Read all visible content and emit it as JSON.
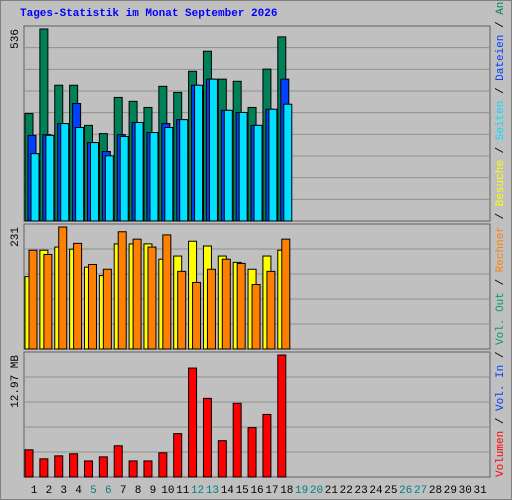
{
  "chart_data": [
    {
      "type": "bar",
      "title": "Tages-Statistik im Monat September 2026",
      "categories": [
        "1",
        "2",
        "3",
        "4",
        "5",
        "6",
        "7",
        "8",
        "9",
        "10",
        "11",
        "12",
        "13",
        "14",
        "15",
        "16",
        "17",
        "18",
        "19",
        "20",
        "21",
        "22",
        "23",
        "24",
        "25",
        "26",
        "27",
        "28",
        "29",
        "30",
        "31"
      ],
      "category_colors": [
        "#000000",
        "#000000",
        "#000000",
        "#000000",
        "#008080",
        "#008080",
        "#000000",
        "#000000",
        "#000000",
        "#000000",
        "#000000",
        "#008080",
        "#008080",
        "#000000",
        "#000000",
        "#000000",
        "#000000",
        "#000000",
        "#008080",
        "#008080",
        "#000000",
        "#000000",
        "#000000",
        "#000000",
        "#000000",
        "#008080",
        "#008080",
        "#000000",
        "#000000",
        "#000000",
        "#000000"
      ],
      "legend_separator": " / ",
      "ylim": [
        0,
        536
      ],
      "yticks": [
        536
      ],
      "series": [
        {
          "name": "Anfragen",
          "color": "#008058",
          "values": [
            300,
            536,
            379,
            379,
            267,
            244,
            345,
            334,
            317,
            376,
            359,
            418,
            474,
            396,
            390,
            317,
            424,
            514,
            null,
            null,
            null,
            null,
            null,
            null,
            null,
            null,
            null,
            null,
            null,
            null,
            null
          ]
        },
        {
          "name": "Dateien",
          "color": "#0040ff",
          "values": [
            239,
            241,
            272,
            328,
            219,
            194,
            241,
            275,
            247,
            272,
            283,
            379,
            396,
            309,
            303,
            267,
            312,
            396,
            null,
            null,
            null,
            null,
            null,
            null,
            null,
            null,
            null,
            null,
            null,
            null,
            null
          ]
        },
        {
          "name": "Seiten",
          "color": "#00e0ff",
          "values": [
            188,
            239,
            272,
            261,
            219,
            182,
            236,
            275,
            247,
            261,
            283,
            379,
            396,
            309,
            303,
            267,
            312,
            326,
            null,
            null,
            null,
            null,
            null,
            null,
            null,
            null,
            null,
            null,
            null,
            null,
            null
          ]
        }
      ]
    },
    {
      "type": "bar",
      "ylim": [
        0,
        231
      ],
      "yticks": [
        231
      ],
      "series": [
        {
          "name": "Besuche",
          "color": "#ffff00",
          "values": [
            137,
            187,
            193,
            189,
            155,
            139,
            199,
            199,
            199,
            170,
            176,
            204,
            195,
            176,
            164,
            151,
            176,
            187,
            null,
            null,
            null,
            null,
            null,
            null,
            null,
            null,
            null,
            null,
            null,
            null,
            null
          ]
        },
        {
          "name": "Rechner",
          "color": "#ff8000",
          "values": [
            187,
            179,
            231,
            200,
            160,
            151,
            222,
            208,
            193,
            216,
            147,
            126,
            151,
            170,
            162,
            122,
            147,
            208,
            null,
            null,
            null,
            null,
            null,
            null,
            null,
            null,
            null,
            null,
            null,
            null,
            null
          ]
        }
      ]
    },
    {
      "type": "bar",
      "ylim": [
        0,
        12.97
      ],
      "yticks": [
        {
          "value": 12.97,
          "label": "12.97 MB"
        }
      ],
      "series": [
        {
          "name": "Vol. Out",
          "color": "#00a060",
          "values": [
            null,
            null,
            null,
            null,
            null,
            null,
            null,
            null,
            null,
            null,
            null,
            null,
            null,
            null,
            null,
            null,
            null,
            null,
            null,
            null,
            null,
            null,
            null,
            null,
            null,
            null,
            null,
            null,
            null,
            null,
            null
          ]
        },
        {
          "name": "Vol. In",
          "color": "#0040ff",
          "values": [
            null,
            null,
            null,
            null,
            null,
            null,
            null,
            null,
            null,
            null,
            null,
            null,
            null,
            null,
            null,
            null,
            null,
            null,
            null,
            null,
            null,
            null,
            null,
            null,
            null,
            null,
            null,
            null,
            null,
            null,
            null
          ]
        },
        {
          "name": "Volumen",
          "color": "#ff0000",
          "values": [
            2.89,
            1.93,
            2.25,
            2.47,
            1.71,
            2.14,
            3.32,
            1.71,
            1.71,
            2.57,
            4.61,
            11.58,
            8.36,
            3.86,
            7.83,
            5.25,
            6.65,
            12.97,
            null,
            null,
            null,
            null,
            null,
            null,
            null,
            null,
            null,
            null,
            null,
            null,
            null
          ]
        }
      ]
    }
  ]
}
